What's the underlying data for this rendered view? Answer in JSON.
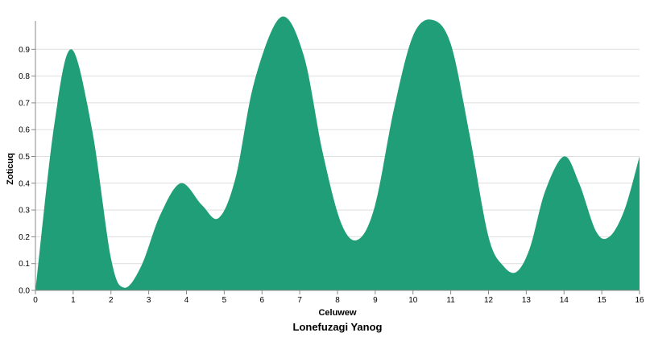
{
  "chart_data": {
    "type": "area",
    "title": "Lonefuzagi Yanog",
    "xlabel": "Celuwew",
    "ylabel": "Zoticuq",
    "xlim": [
      0,
      16
    ],
    "ylim": [
      0,
      1.0
    ],
    "x_ticks": [
      "0",
      "1",
      "2",
      "3",
      "4",
      "5",
      "6",
      "7",
      "8",
      "9",
      "10",
      "11",
      "12",
      "13",
      "14",
      "15",
      "16"
    ],
    "y_ticks": [
      "0.0",
      "0.1",
      "0.2",
      "0.3",
      "0.4",
      "0.5",
      "0.6",
      "0.7",
      "0.8",
      "0.9"
    ],
    "grid": true,
    "color": "#1f9e77",
    "series": [
      {
        "x": [
          0,
          0.5,
          0.95,
          1.5,
          2.0,
          2.35,
          2.8,
          3.3,
          3.85,
          4.4,
          4.85,
          5.3,
          5.8,
          6.5,
          7.1,
          7.6,
          8.1,
          8.55,
          9.0,
          9.5,
          10.0,
          10.5,
          11.0,
          11.5,
          12.0,
          12.4,
          12.75,
          13.1,
          13.5,
          14.0,
          14.4,
          14.85,
          15.2,
          15.6,
          16.0
        ],
        "y": [
          0.0,
          0.62,
          0.9,
          0.6,
          0.12,
          0.01,
          0.09,
          0.28,
          0.4,
          0.32,
          0.27,
          0.42,
          0.78,
          1.02,
          0.88,
          0.52,
          0.25,
          0.19,
          0.32,
          0.68,
          0.95,
          1.01,
          0.92,
          0.58,
          0.2,
          0.09,
          0.07,
          0.16,
          0.37,
          0.5,
          0.4,
          0.22,
          0.2,
          0.3,
          0.5
        ]
      }
    ]
  }
}
